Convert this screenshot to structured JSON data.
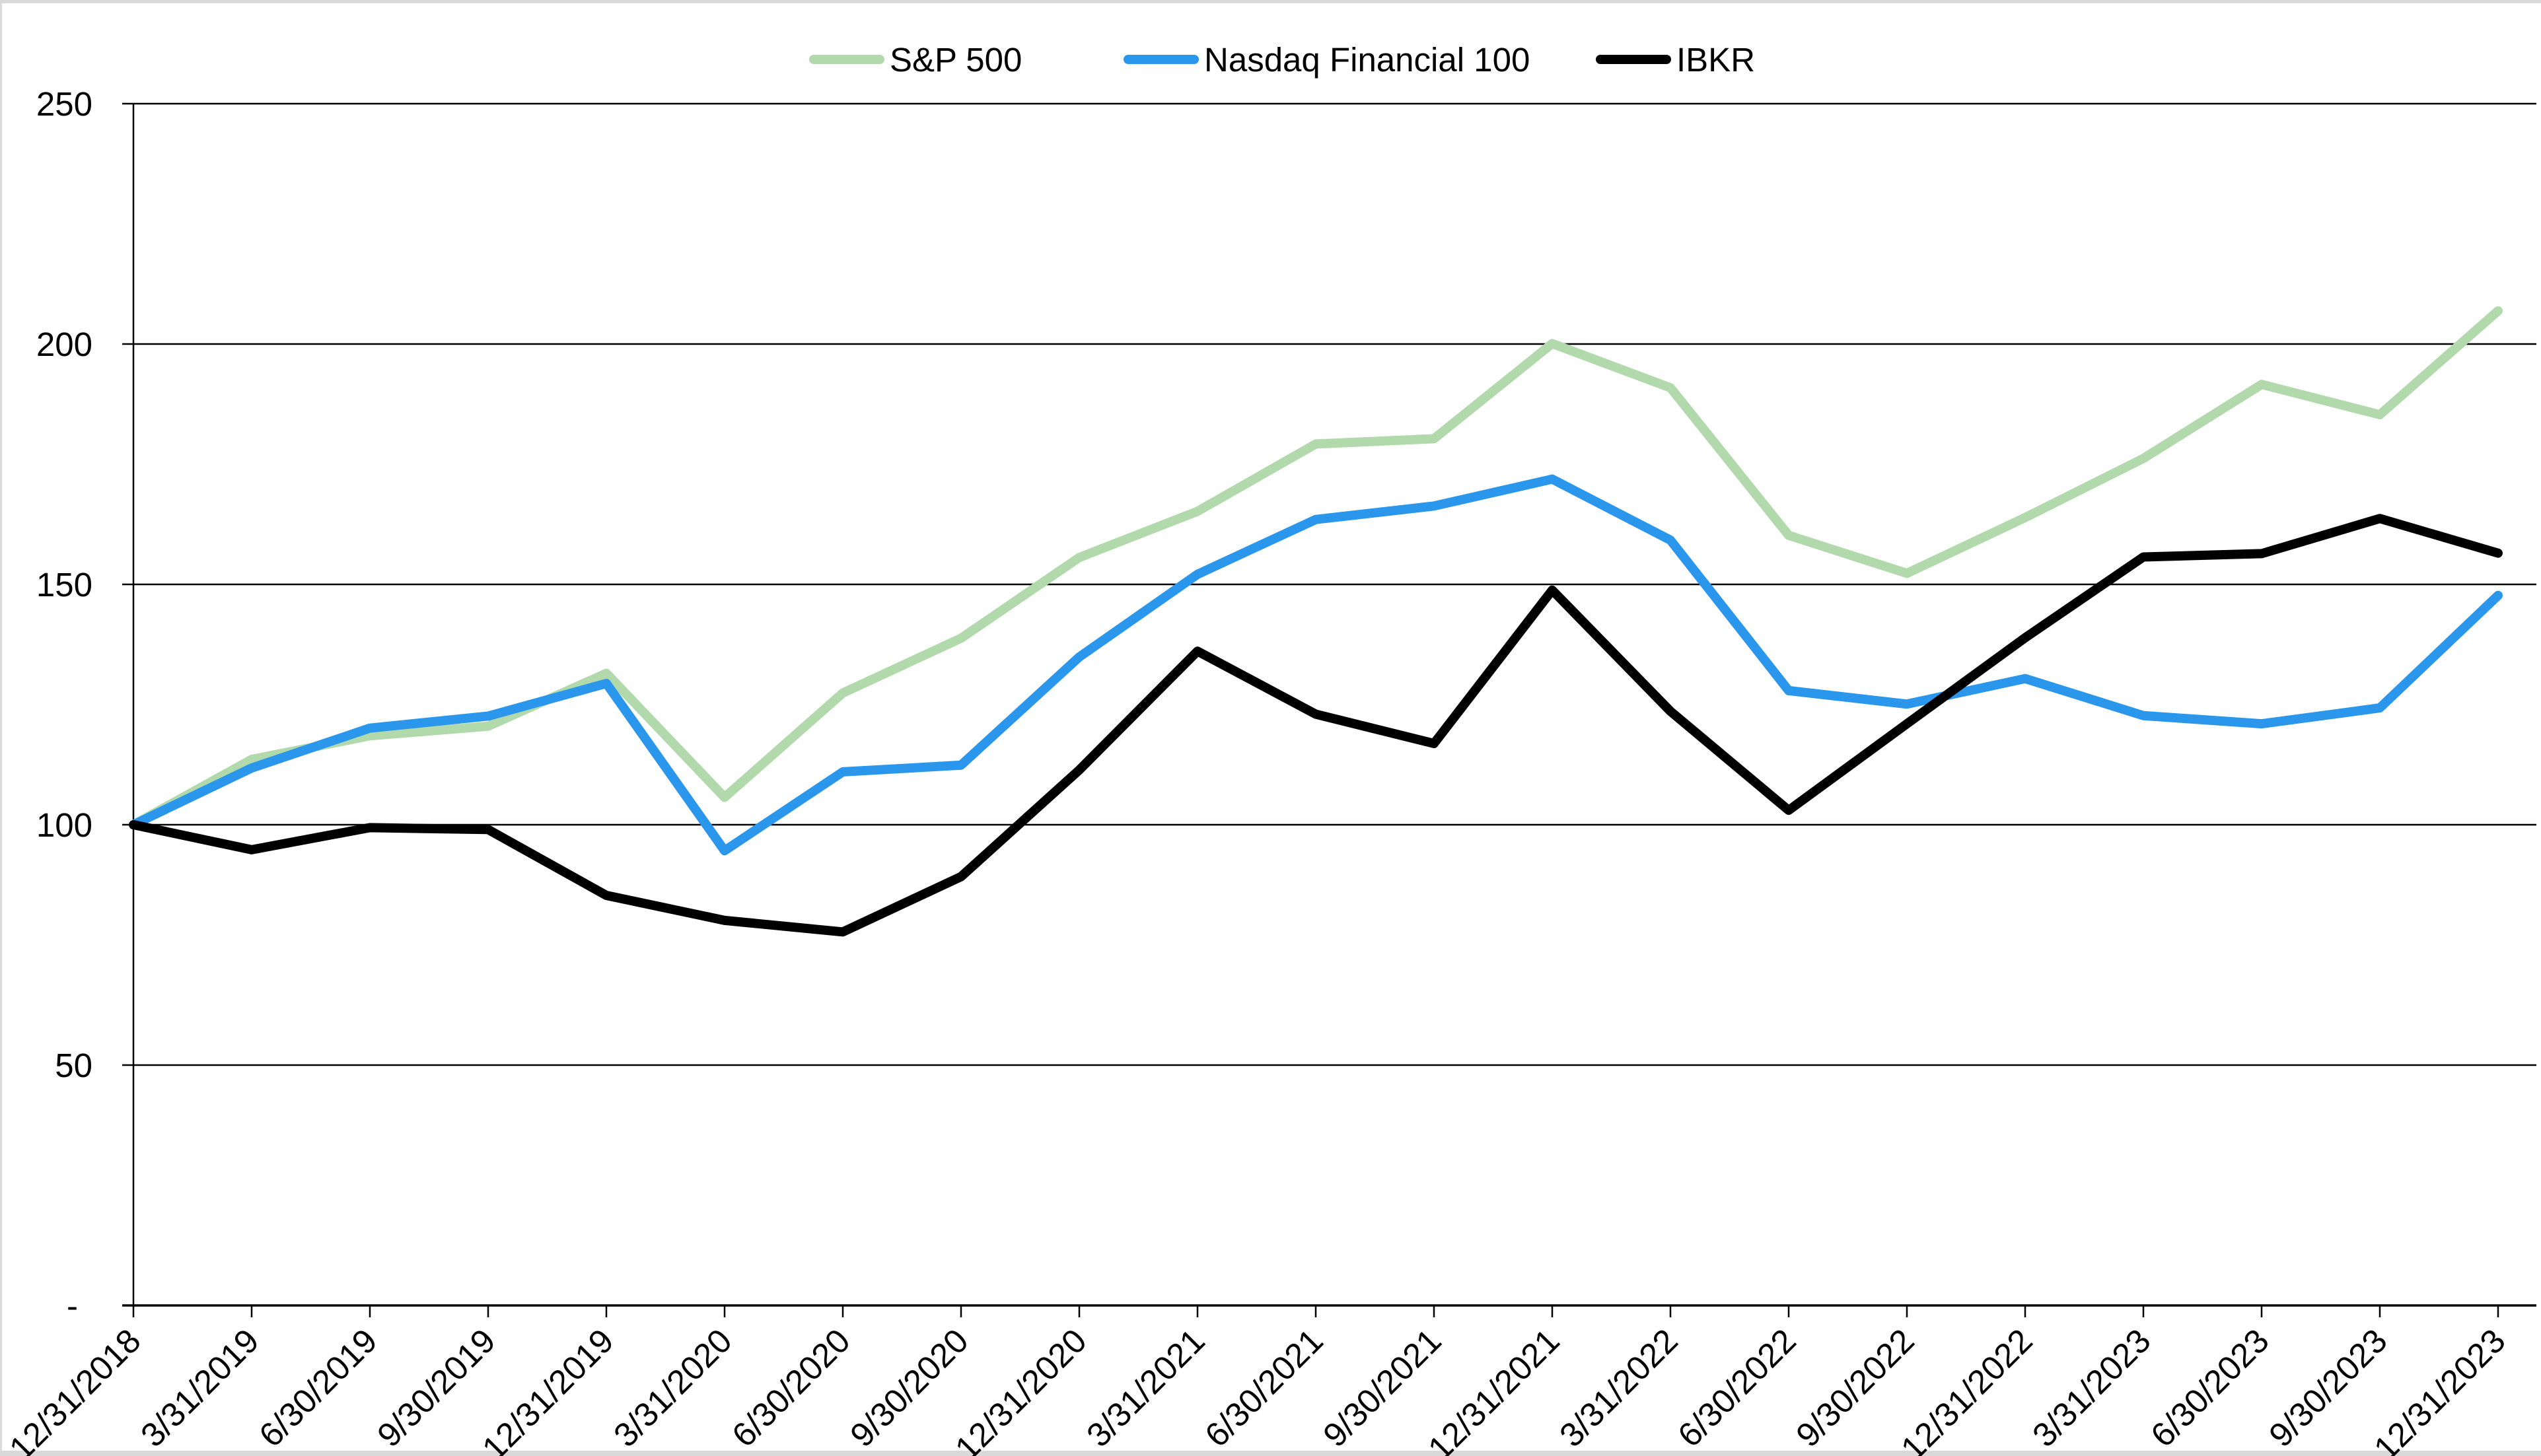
{
  "page": {
    "background": "#ffffff",
    "edge_color": "#d9d9d9"
  },
  "chart_data": {
    "type": "line",
    "title": "",
    "xlabel": "",
    "ylabel": "",
    "ylim": [
      0,
      250
    ],
    "yticks": [
      250,
      200,
      150,
      100,
      50,
      0
    ],
    "ytick_labels": [
      "250",
      "200",
      "150",
      "100",
      "50",
      "-"
    ],
    "grid": "horizontal",
    "gridline_color": "#000000",
    "legend_position": "top",
    "categories": [
      "12/31/2018",
      "3/31/2019",
      "6/30/2019",
      "9/30/2019",
      "12/31/2019",
      "3/31/2020",
      "6/30/2020",
      "9/30/2020",
      "12/31/2020",
      "3/31/2021",
      "6/30/2021",
      "9/30/2021",
      "12/31/2021",
      "3/31/2022",
      "6/30/2022",
      "9/30/2022",
      "12/31/2022",
      "3/31/2023",
      "6/30/2023",
      "9/30/2023",
      "12/31/2023"
    ],
    "series": [
      {
        "name": "S&P 500",
        "color": "#b2d9ac",
        "values": [
          100,
          113.6,
          118.5,
          120.5,
          131.5,
          105.7,
          127.4,
          138.8,
          155.6,
          165.2,
          179.2,
          180.3,
          200.1,
          190.9,
          160.2,
          152.3,
          163.9,
          176.2,
          191.6,
          185.3,
          206.9
        ]
      },
      {
        "name": "Nasdaq Financial 100",
        "color": "#2a96ec",
        "values": [
          100,
          111.8,
          120.1,
          122.6,
          129.4,
          94.6,
          111.0,
          112.4,
          134.9,
          152.1,
          163.5,
          166.3,
          171.9,
          159.2,
          127.9,
          125.1,
          130.4,
          122.7,
          121.0,
          124.3,
          147.7
        ]
      },
      {
        "name": "IBKR",
        "color": "#000000",
        "values": [
          100,
          94.8,
          99.4,
          99.0,
          85.3,
          80.1,
          77.7,
          89.2,
          111.4,
          136.1,
          123.0,
          116.9,
          148.8,
          123.6,
          103.0,
          121.0,
          138.9,
          155.7,
          156.4,
          163.7,
          156.5
        ]
      }
    ]
  }
}
